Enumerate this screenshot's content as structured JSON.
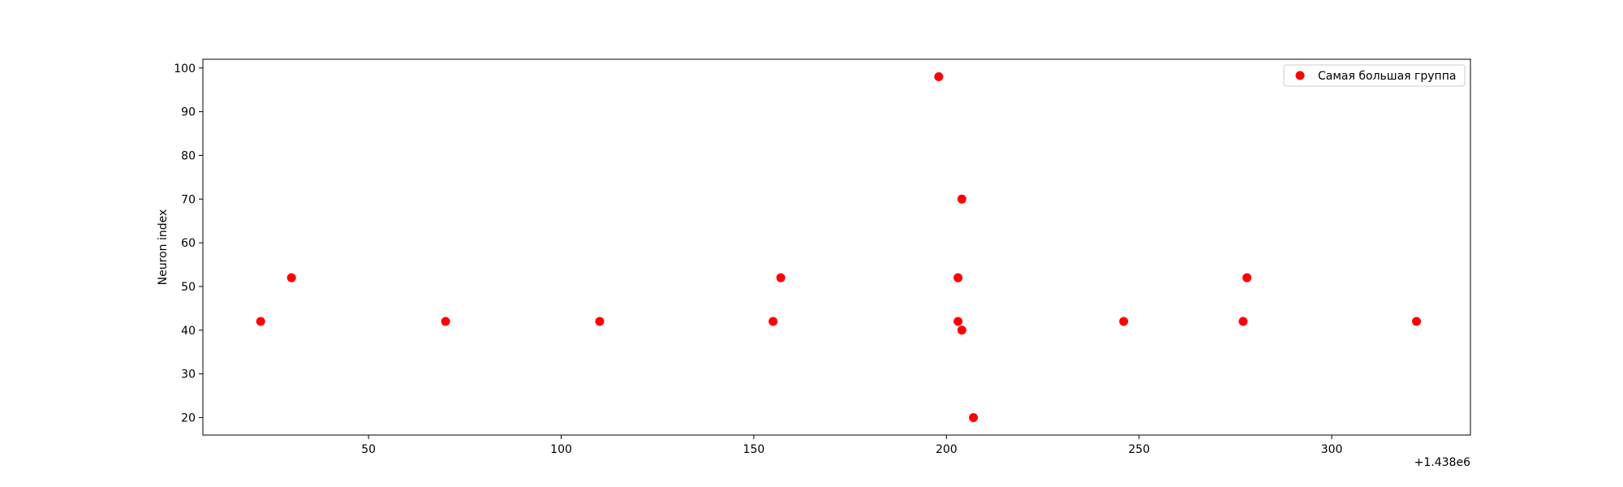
{
  "chart_data": {
    "type": "scatter",
    "title": "",
    "xlabel": "",
    "ylabel": "Neuron index",
    "x_offset_label": "+1.438e6",
    "xlim": [
      7,
      336
    ],
    "ylim": [
      16,
      102
    ],
    "xticks": [
      50,
      100,
      150,
      200,
      250,
      300
    ],
    "yticks": [
      20,
      30,
      40,
      50,
      60,
      70,
      80,
      90,
      100
    ],
    "grid": false,
    "legend_position": "top-right",
    "series": [
      {
        "name": "Самая большая группа",
        "color": "#ff0000",
        "points": [
          {
            "x": 22,
            "y": 42
          },
          {
            "x": 30,
            "y": 52
          },
          {
            "x": 70,
            "y": 42
          },
          {
            "x": 110,
            "y": 42
          },
          {
            "x": 155,
            "y": 42
          },
          {
            "x": 157,
            "y": 52
          },
          {
            "x": 198,
            "y": 98
          },
          {
            "x": 203,
            "y": 52
          },
          {
            "x": 203,
            "y": 42
          },
          {
            "x": 204,
            "y": 70
          },
          {
            "x": 204,
            "y": 40
          },
          {
            "x": 207,
            "y": 20
          },
          {
            "x": 246,
            "y": 42
          },
          {
            "x": 277,
            "y": 42
          },
          {
            "x": 278,
            "y": 52
          },
          {
            "x": 322,
            "y": 42
          }
        ]
      }
    ]
  }
}
